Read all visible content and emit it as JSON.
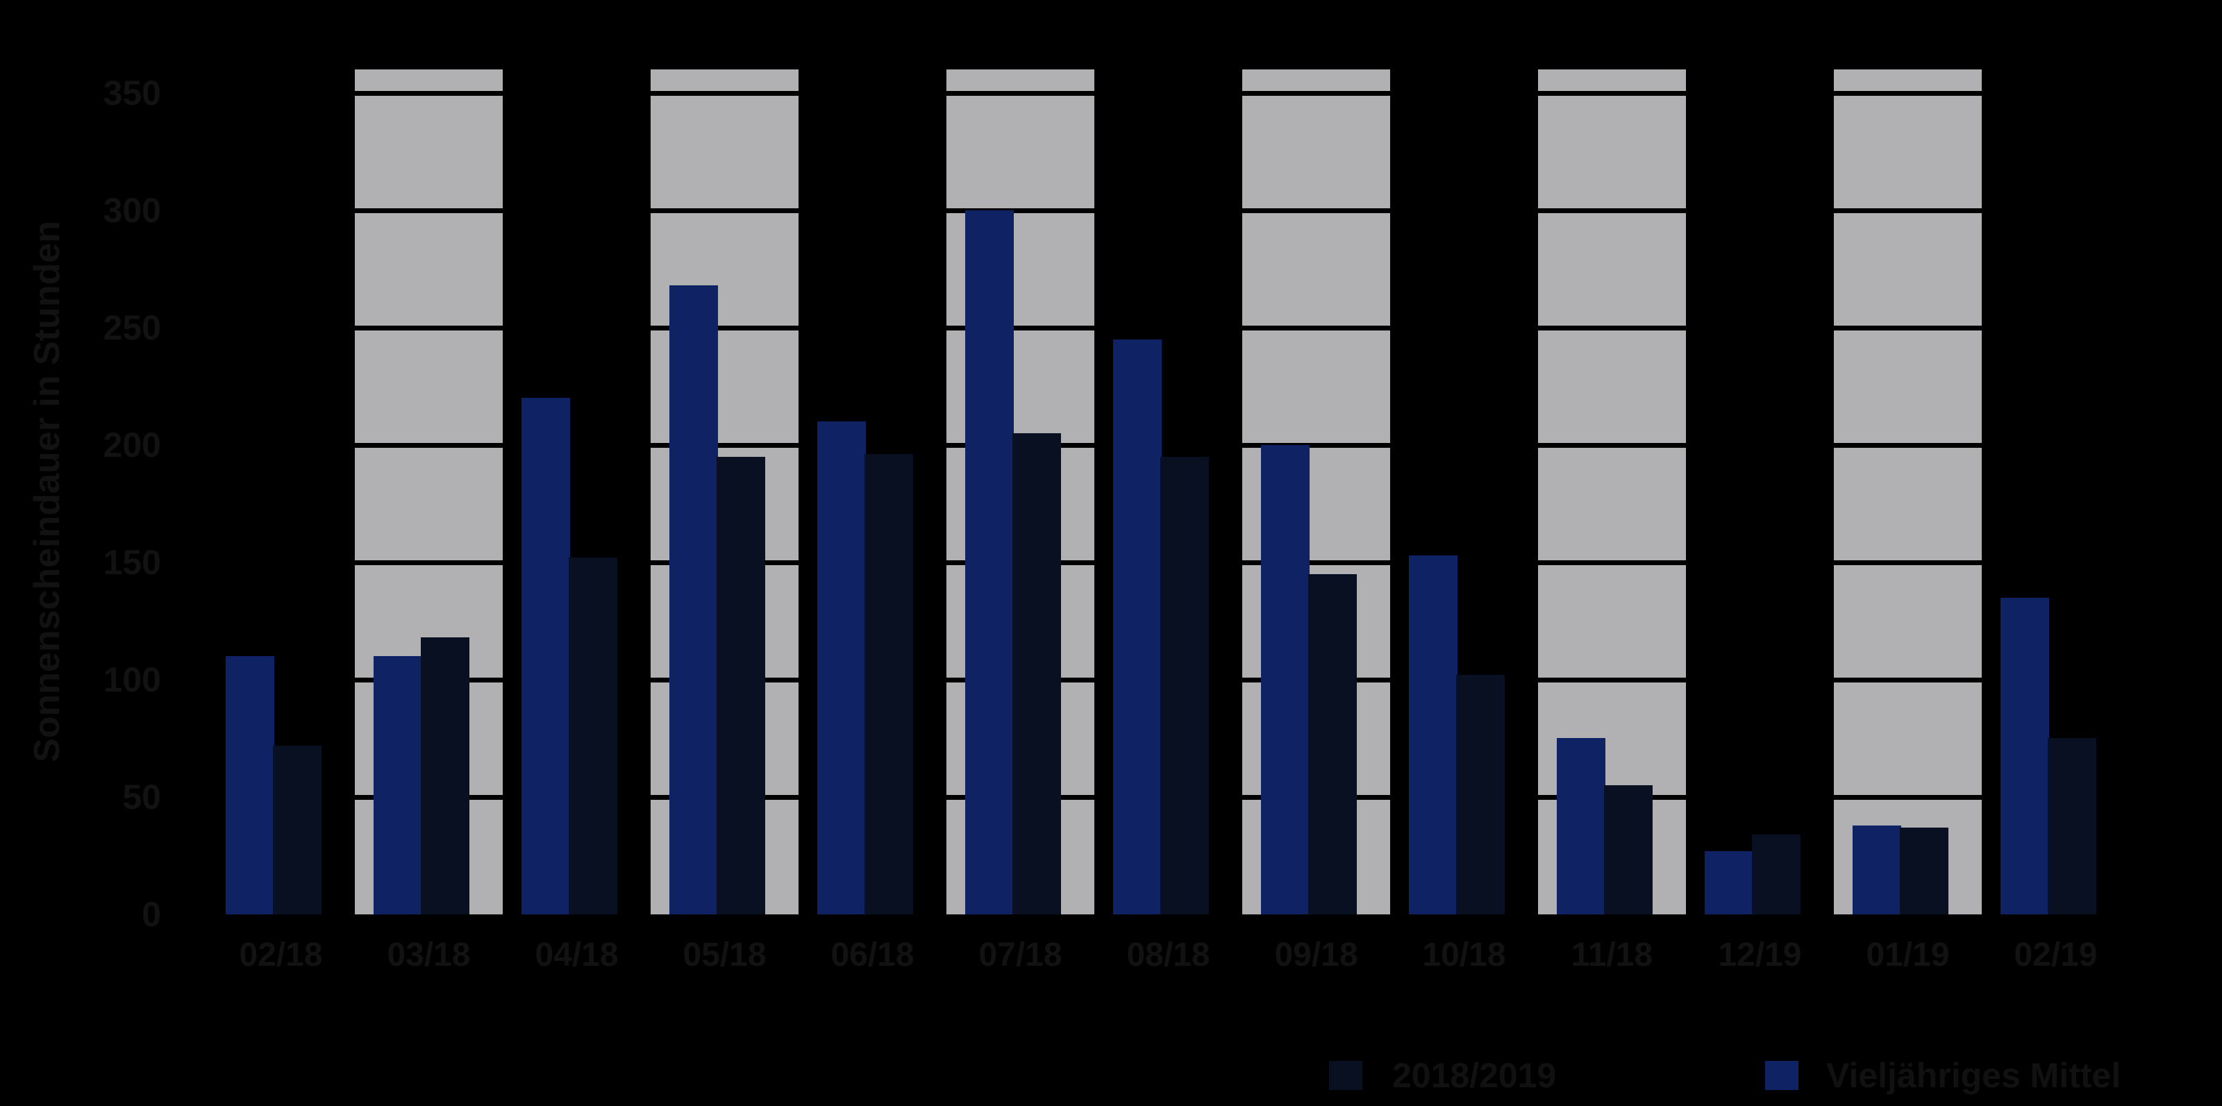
{
  "chart_data": {
    "type": "bar",
    "title": "",
    "xlabel": "",
    "ylabel": "Sonnenscheindauer in Stunden",
    "ylim": [
      0,
      360
    ],
    "ytick_interval": 50,
    "yticks": [
      0,
      50,
      100,
      150,
      200,
      250,
      300,
      350
    ],
    "categories": [
      "02/18",
      "03/18",
      "04/18",
      "05/18",
      "06/18",
      "07/18",
      "08/18",
      "09/18",
      "10/18",
      "11/18",
      "12/19",
      "01/19",
      "02/19"
    ],
    "series": [
      {
        "name": "2018/2019",
        "color": "#081021",
        "bar_position": "right",
        "values": [
          72,
          118,
          152,
          195,
          196,
          205,
          195,
          145,
          102,
          55,
          34,
          37,
          75
        ]
      },
      {
        "name": "Vieljähriges Mittel",
        "color": "#0f2264",
        "bar_position": "left",
        "values": [
          110,
          110,
          220,
          268,
          210,
          300,
          245,
          200,
          153,
          75,
          27,
          38,
          135
        ]
      }
    ],
    "legend_position": "bottom-right",
    "grid": "horizontal black gridline segments visible only inside gray category bands",
    "striped_category_indices": [
      1,
      3,
      5,
      7,
      9,
      11
    ],
    "stripe_color": "#b1b1b3",
    "background_color": "#000000",
    "text_color": "#121212"
  },
  "legend": {
    "entries": [
      {
        "label": "2018/2019",
        "color": "#081021"
      },
      {
        "label": "Vieljähriges Mittel",
        "color": "#0f2264"
      }
    ]
  }
}
